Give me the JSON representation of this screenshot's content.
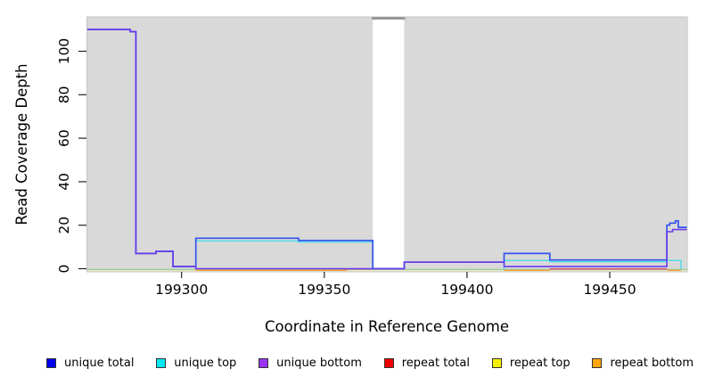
{
  "figure": {
    "xlabel": "Coordinate in Reference Genome",
    "ylabel": "Read Coverage Depth"
  },
  "chart_data": {
    "type": "line",
    "subtype": "step-coverage",
    "title": "",
    "xlabel": "Coordinate in Reference Genome",
    "ylabel": "Read Coverage Depth",
    "xlim": [
      199267,
      199477
    ],
    "ylim": [
      0,
      116
    ],
    "x_ticks": [
      "199300",
      "199350",
      "199400",
      "199450"
    ],
    "x_tick_values": [
      199300,
      199350,
      199400,
      199450
    ],
    "y_ticks": [
      "0",
      "20",
      "40",
      "60",
      "80",
      "100"
    ],
    "y_tick_values": [
      0,
      20,
      40,
      60,
      80,
      100
    ],
    "panel_background": "#d9d9d9",
    "gap_region": {
      "start": 199367,
      "end": 199378,
      "fill": "#ffffff",
      "top_bar_color": "#8f8f8f"
    },
    "overlap_baseline_color": "#8fc98f",
    "legend_position": "bottom",
    "series": [
      {
        "name": "unique total",
        "color": "#0000f0",
        "line_color": "#3353ee",
        "segments": [
          [
            199267,
            199282,
            110
          ],
          [
            199282,
            199284,
            109
          ],
          [
            199284,
            199291,
            7
          ],
          [
            199291,
            199297,
            8
          ],
          [
            199297,
            199305,
            1
          ],
          [
            199305,
            199341,
            14
          ],
          [
            199341,
            199367,
            13
          ],
          [
            199367,
            199378,
            0
          ],
          [
            199378,
            199413,
            3
          ],
          [
            199413,
            199429,
            7
          ],
          [
            199429,
            199470,
            4
          ],
          [
            199470,
            199471,
            20
          ],
          [
            199471,
            199473,
            21
          ],
          [
            199473,
            199474,
            22
          ],
          [
            199474,
            199477,
            19
          ]
        ]
      },
      {
        "name": "unique top",
        "color": "#00e8f0",
        "line_color": "#49dce8",
        "segments": [
          [
            199305,
            199341,
            13
          ],
          [
            199341,
            199367,
            12.5
          ],
          [
            199413,
            199429,
            4
          ],
          [
            199429,
            199470,
            3.5
          ],
          [
            199470,
            199475,
            4
          ]
        ]
      },
      {
        "name": "unique bottom",
        "color": "#9933f5",
        "line_color": "#6b3aec",
        "segments": [
          [
            199267,
            199282,
            110
          ],
          [
            199282,
            199284,
            109
          ],
          [
            199284,
            199291,
            7
          ],
          [
            199291,
            199297,
            8
          ],
          [
            199297,
            199305,
            1
          ],
          [
            199305,
            199378,
            0
          ],
          [
            199378,
            199413,
            3
          ],
          [
            199413,
            199470,
            1
          ],
          [
            199470,
            199472,
            17
          ],
          [
            199472,
            199477,
            18
          ]
        ]
      },
      {
        "name": "repeat total",
        "color": "#f00000",
        "line_color": "#d24a62",
        "segments": [
          [
            199357,
            199378,
            0
          ],
          [
            199429,
            199470,
            0
          ]
        ]
      },
      {
        "name": "repeat top",
        "color": "#f5f000",
        "line_color": "#ececc4",
        "segments": [
          [
            199267,
            199477,
            0
          ]
        ]
      },
      {
        "name": "repeat bottom",
        "color": "#ffa510",
        "line_color": "#ff9e3d",
        "segments": [
          [
            199305,
            199358,
            0
          ],
          [
            199413,
            199429,
            0
          ],
          [
            199470,
            199475,
            0
          ]
        ]
      }
    ]
  }
}
